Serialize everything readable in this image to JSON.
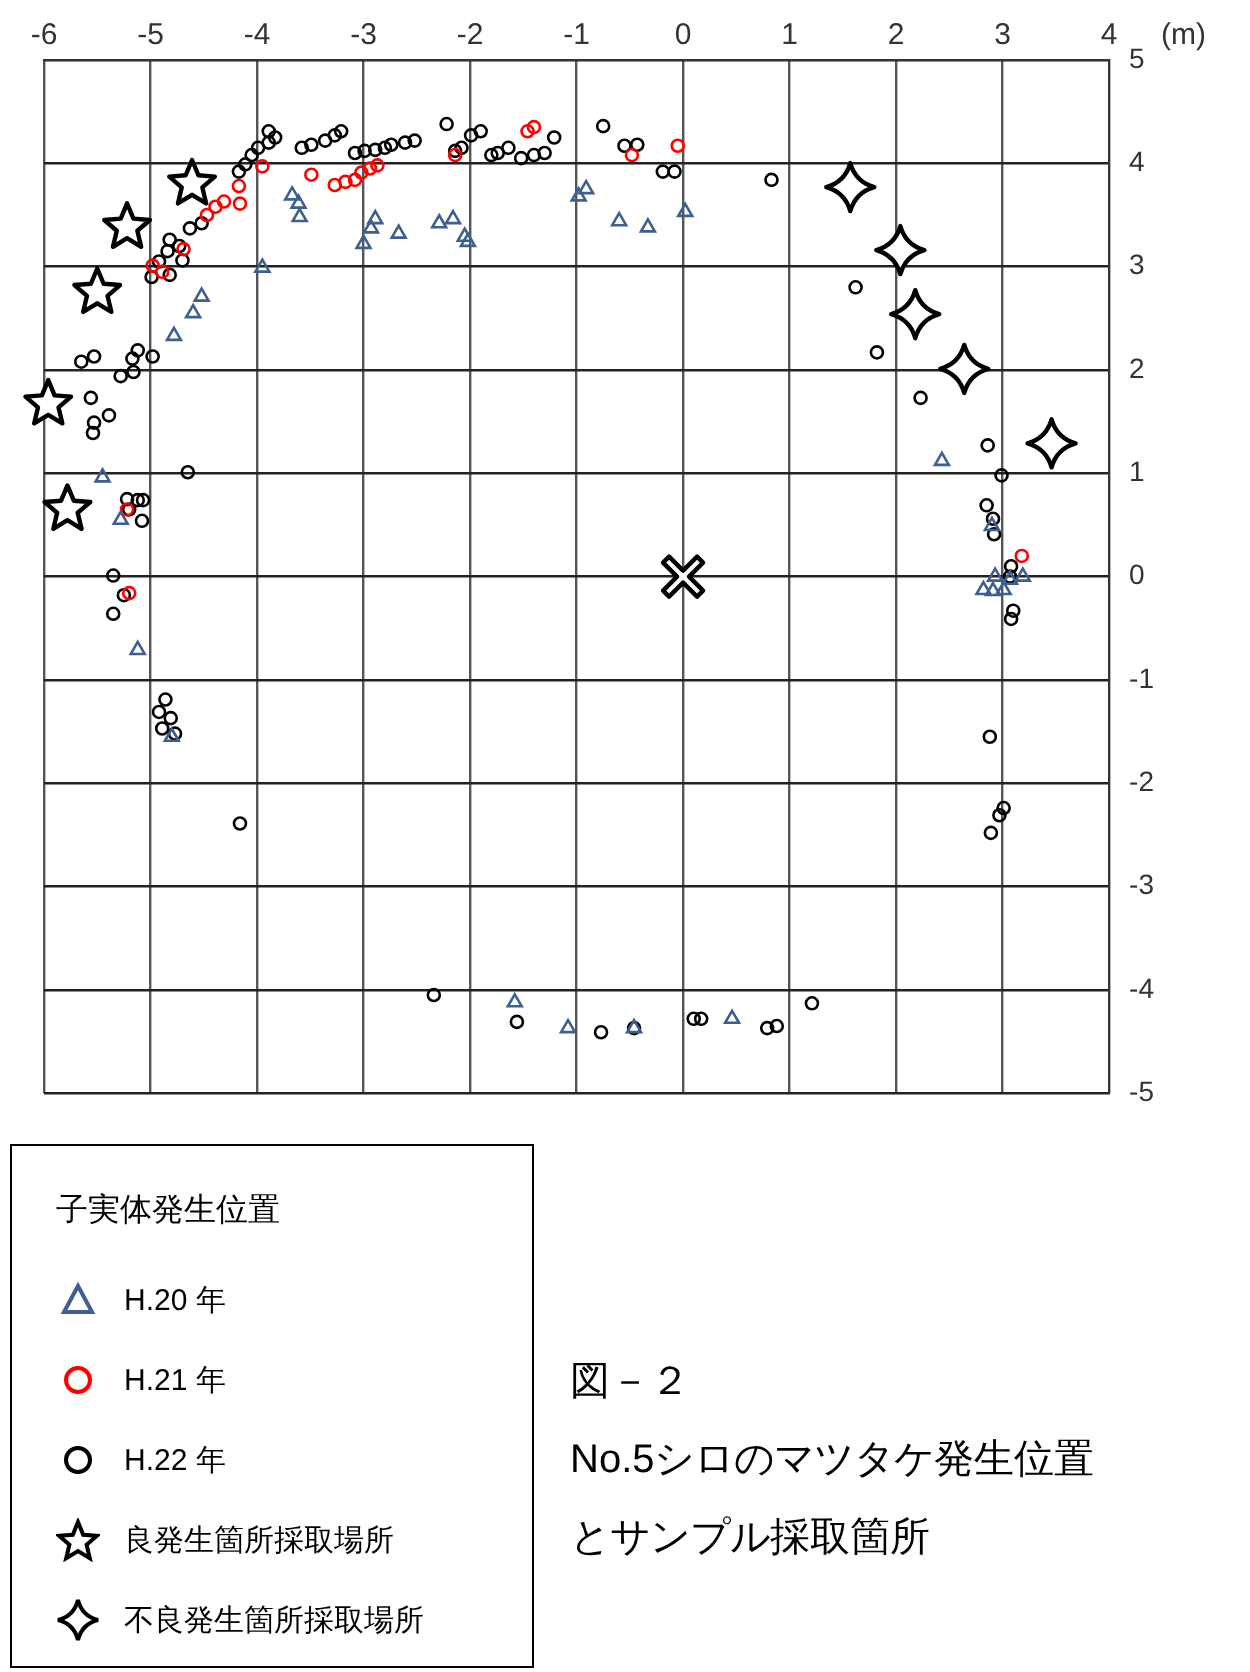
{
  "chart_data": {
    "type": "scatter",
    "xlabel": "(m)",
    "legend_title": "子実体発生位置",
    "legend": "bottom left",
    "grid": true,
    "xlim": [
      -6,
      4
    ],
    "xticks": [
      -6,
      -5,
      -4,
      -3,
      -2,
      -1,
      0,
      1,
      2,
      3,
      4
    ],
    "ylim": [
      -5,
      5
    ],
    "yticks": [
      -5,
      -4,
      -3,
      -2,
      -1,
      0,
      1,
      2,
      3,
      4,
      5
    ],
    "annotations": [
      "図－２",
      "No.5シロのマツタケ発生位置",
      "とサンプル採取箇所"
    ],
    "series": [
      {
        "name": "H.20 年",
        "color": "#3f5f8f",
        "marker": "triangle",
        "x": [
          -3.95,
          -4.52,
          -4.6,
          -4.78,
          -5.45,
          -5.28,
          -5.12,
          -4.8,
          -3.67,
          -3.61,
          -3.6,
          -3,
          -2.93,
          -2.89,
          -2.67,
          -2.29,
          -2.16,
          -2.05,
          -2.02,
          -0.98,
          -0.91,
          -0.6,
          -0.33,
          0.02,
          2.43,
          2.9,
          2.93,
          2.82,
          2.91,
          3.01,
          3.07,
          3.19,
          -1.58,
          -1.08,
          -0.46,
          0.46
        ],
        "values": [
          2.99,
          2.71,
          2.55,
          2.33,
          0.96,
          0.55,
          -0.71,
          -1.55,
          3.69,
          3.61,
          3.48,
          3.22,
          3.37,
          3.46,
          3.32,
          3.42,
          3.46,
          3.29,
          3.24,
          3.68,
          3.75,
          3.44,
          3.38,
          3.53,
          1.12,
          0.49,
          0,
          -0.13,
          -0.14,
          -0.13,
          -0.03,
          0,
          -4.12,
          -4.37,
          -4.37,
          -4.28
        ]
      },
      {
        "name": "H.21 年",
        "color": "#ff0000",
        "marker": "circle",
        "x": [
          -3.95,
          -4.17,
          -4.16,
          -4.31,
          -4.39,
          -4.47,
          -4.69,
          -4.98,
          -4.89,
          -5.22,
          -5.2,
          -3.49,
          -3.27,
          -3.17,
          -3.08,
          -3.02,
          -2.94,
          -2.87,
          -2.14,
          -1.46,
          -1.4,
          -0.48,
          -0.05,
          3.18
        ],
        "values": [
          3.97,
          3.78,
          3.61,
          3.63,
          3.58,
          3.5,
          3.17,
          3.01,
          2.95,
          0.65,
          -0.16,
          3.89,
          3.79,
          3.82,
          3.84,
          3.91,
          3.95,
          3.98,
          4.08,
          4.31,
          4.35,
          4.08,
          4.17,
          0.2
        ]
      },
      {
        "name": "H.22 年",
        "color": "#000000",
        "marker": "circle",
        "x": [
          -5.65,
          -5.53,
          -5.17,
          -5.12,
          -4.98,
          -5.28,
          -5.16,
          -5.56,
          -5.39,
          -5.53,
          -5.54,
          -4.65,
          -5.22,
          -5.12,
          -5.07,
          -5.2,
          -5.08,
          -5.35,
          -5.25,
          -5.35,
          -4.86,
          -4.92,
          -4.81,
          -4.89,
          -4.77,
          -4.99,
          -4.82,
          -4.92,
          -4.7,
          -4.84,
          -4.73,
          -4.82,
          -4.63,
          -4.52,
          -4.17,
          -4.11,
          -4.05,
          -3.99,
          -3.89,
          -3.83,
          -3.89,
          -3.58,
          -3.49,
          -3.36,
          -3.27,
          -3.21,
          -3.08,
          -2.99,
          -2.89,
          -2.8,
          -2.74,
          -2.61,
          -2.52,
          -2.22,
          -2.14,
          -2.08,
          -1.99,
          -1.9,
          -1.8,
          -1.74,
          -1.64,
          -1.52,
          -1.4,
          -1.3,
          -1.21,
          -0.75,
          -0.55,
          -0.43,
          -0.19,
          -0.08,
          0.83,
          1.62,
          1.82,
          2.23,
          2.86,
          2.99,
          2.85,
          2.91,
          2.92,
          3.08,
          3.07,
          3.1,
          3.08,
          2.88,
          3.01,
          2.97,
          2.89,
          -4.16,
          -2.34,
          -1.56,
          -0.77,
          -0.46,
          0.1,
          0.17,
          0.79,
          0.88,
          1.21
        ],
        "values": [
          2.08,
          2.13,
          2.11,
          2.19,
          2.13,
          1.94,
          1.98,
          1.73,
          1.56,
          1.49,
          1.39,
          1.01,
          0.75,
          0.74,
          0.74,
          0.65,
          0.54,
          0.01,
          -0.18,
          -0.36,
          -1.19,
          -1.31,
          -1.37,
          -1.47,
          -1.52,
          2.9,
          2.92,
          3.05,
          3.06,
          3.15,
          3.2,
          3.26,
          3.37,
          3.42,
          3.92,
          3.99,
          4.08,
          4.15,
          4.31,
          4.25,
          4.2,
          4.15,
          4.18,
          4.22,
          4.27,
          4.31,
          4.1,
          4.12,
          4.13,
          4.15,
          4.18,
          4.2,
          4.22,
          4.38,
          4.12,
          4.15,
          4.27,
          4.31,
          4.08,
          4.1,
          4.15,
          4.05,
          4.08,
          4.1,
          4.25,
          4.36,
          4.17,
          4.18,
          3.92,
          3.92,
          3.84,
          2.8,
          2.17,
          1.73,
          1.27,
          0.98,
          0.69,
          0.56,
          0.41,
          0.1,
          0,
          -0.33,
          -0.41,
          -1.55,
          -2.24,
          -2.31,
          -2.48,
          -2.39,
          -4.05,
          -4.31,
          -4.41,
          -4.37,
          -4.28,
          -4.28,
          -4.37,
          -4.35,
          -4.13
        ]
      },
      {
        "name": "良発生箇所採取場所",
        "color": "#000000",
        "marker": "star",
        "x": [
          -4.61,
          -5.22,
          -5.5,
          -5.96,
          -5.78
        ],
        "values": [
          3.8,
          3.38,
          2.75,
          1.67,
          0.65
        ]
      },
      {
        "name": "不良発生箇所採取場所",
        "color": "#000000",
        "marker": "diamond",
        "x": [
          1.57,
          2.04,
          2.18,
          2.64,
          3.46
        ],
        "values": [
          3.77,
          3.16,
          2.54,
          2.01,
          1.29
        ]
      },
      {
        "color": "#000000",
        "marker": "cross",
        "x": [
          0
        ],
        "values": [
          0
        ]
      }
    ]
  }
}
